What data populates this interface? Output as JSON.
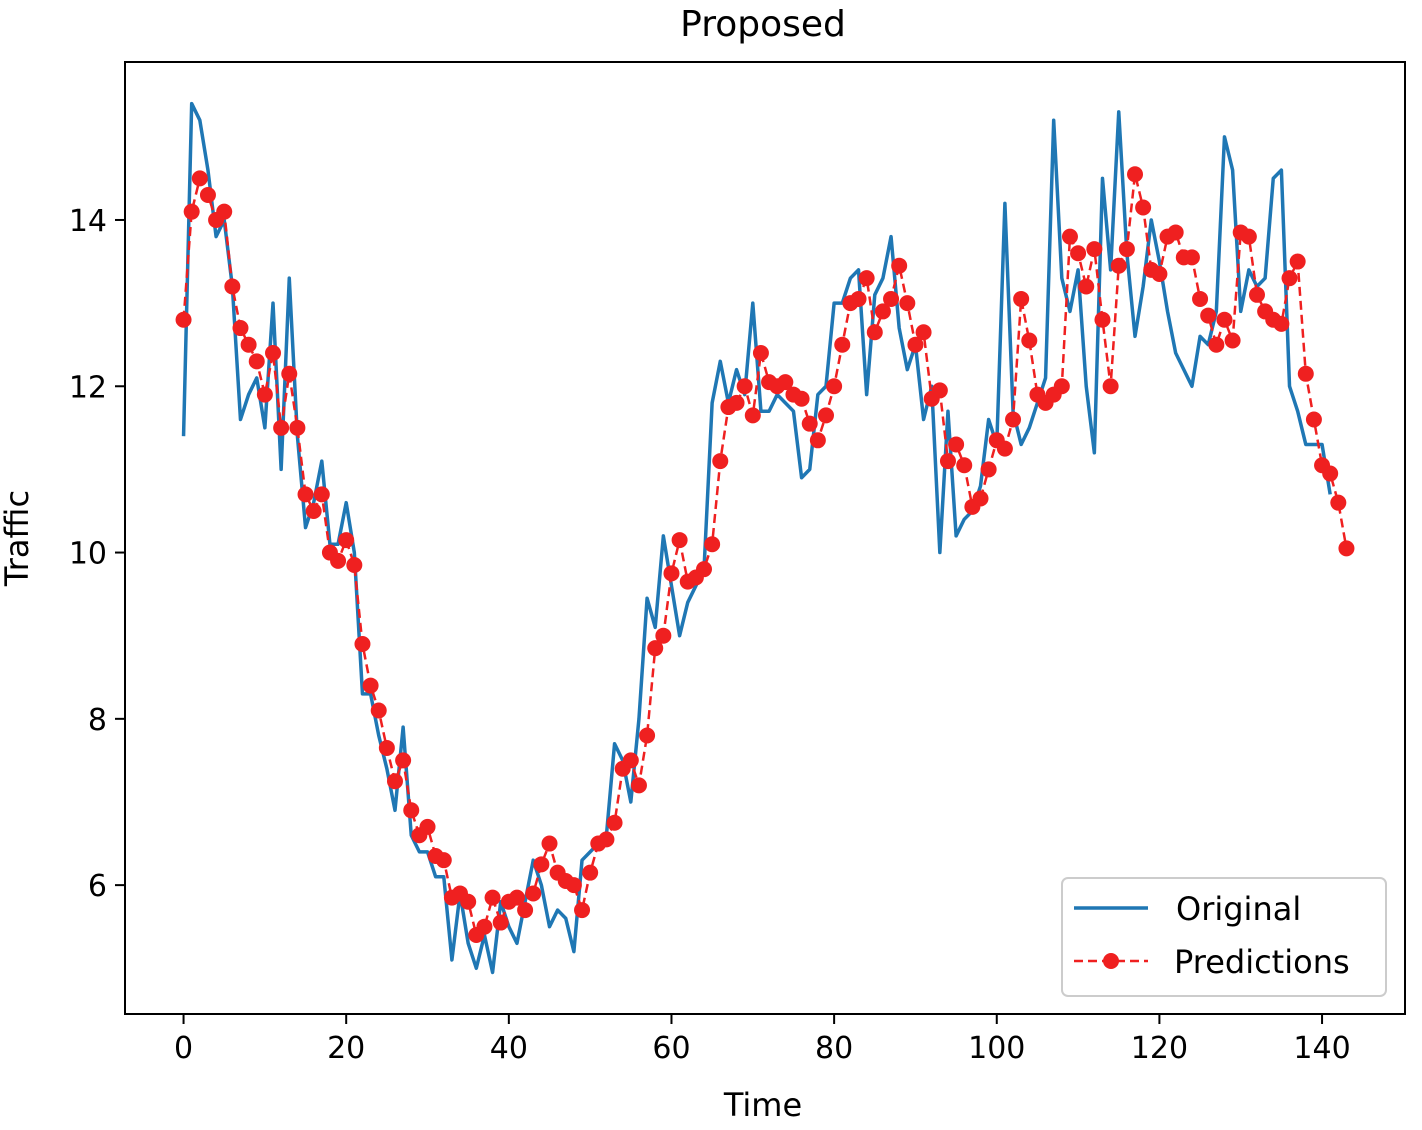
{
  "chart_data": {
    "type": "line",
    "title": "Proposed",
    "xlabel": "Time",
    "ylabel": "Traffic",
    "xlim": [
      -7.2,
      150.2
    ],
    "ylim": [
      4.45,
      15.9
    ],
    "xticks": [
      0,
      20,
      40,
      60,
      80,
      100,
      120,
      140
    ],
    "yticks": [
      6,
      8,
      10,
      12,
      14
    ],
    "grid": false,
    "legend_position": "lower-right",
    "series": [
      {
        "name": "Original",
        "color": "#1f77b4",
        "style": "solid",
        "values": [
          11.4,
          15.4,
          15.2,
          14.6,
          13.8,
          14.0,
          13.2,
          11.6,
          11.9,
          12.1,
          11.5,
          13.0,
          11.0,
          13.3,
          11.4,
          10.3,
          10.6,
          11.1,
          10.1,
          10.1,
          10.6,
          10.0,
          8.3,
          8.3,
          7.8,
          7.4,
          6.9,
          7.9,
          6.6,
          6.4,
          6.4,
          6.1,
          6.1,
          5.1,
          5.9,
          5.3,
          5.0,
          5.4,
          4.95,
          5.8,
          5.5,
          5.3,
          5.8,
          6.3,
          6.0,
          5.5,
          5.7,
          5.6,
          5.2,
          6.3,
          6.4,
          6.5,
          6.6,
          7.7,
          7.5,
          7.0,
          8.0,
          9.45,
          9.1,
          10.2,
          9.6,
          9.0,
          9.4,
          9.6,
          9.8,
          11.8,
          12.3,
          11.8,
          12.2,
          11.9,
          13.0,
          11.7,
          11.7,
          11.9,
          11.8,
          11.7,
          10.9,
          11.0,
          11.9,
          12.0,
          13.0,
          13.0,
          13.3,
          13.4,
          11.9,
          13.1,
          13.3,
          13.8,
          12.7,
          12.2,
          12.5,
          11.6,
          12.0,
          10.0,
          11.7,
          10.2,
          10.4,
          10.5,
          10.8,
          11.6,
          11.3,
          14.2,
          11.7,
          11.3,
          11.5,
          11.8,
          12.1,
          15.2,
          13.3,
          12.9,
          13.4,
          12.0,
          11.2,
          14.5,
          13.4,
          15.3,
          13.6,
          12.6,
          13.2,
          14.0,
          13.5,
          12.9,
          12.4,
          12.2,
          12.0,
          12.6,
          12.5,
          12.9,
          15.0,
          14.6,
          12.9,
          13.4,
          13.2,
          13.3,
          14.5,
          14.6,
          12.0,
          11.7,
          11.3,
          11.3,
          11.3,
          10.7
        ]
      },
      {
        "name": "Predictions",
        "color": "#ef2020",
        "style": "dashed",
        "marker": "circle",
        "values": [
          12.8,
          14.1,
          14.5,
          14.3,
          14.0,
          14.1,
          13.2,
          12.7,
          12.5,
          12.3,
          11.9,
          12.4,
          11.5,
          12.15,
          11.5,
          10.7,
          10.5,
          10.7,
          10.0,
          9.9,
          10.15,
          9.85,
          8.9,
          8.4,
          8.1,
          7.65,
          7.25,
          7.5,
          6.9,
          6.6,
          6.7,
          6.35,
          6.3,
          5.85,
          5.9,
          5.8,
          5.4,
          5.5,
          5.85,
          5.55,
          5.8,
          5.85,
          5.7,
          5.9,
          6.25,
          6.5,
          6.15,
          6.05,
          6.0,
          5.7,
          6.15,
          6.5,
          6.55,
          6.75,
          7.4,
          7.5,
          7.2,
          7.8,
          8.85,
          9.0,
          9.75,
          10.15,
          9.65,
          9.7,
          9.8,
          10.1,
          11.1,
          11.75,
          11.8,
          12.0,
          11.65,
          12.4,
          12.05,
          12.0,
          12.05,
          11.9,
          11.85,
          11.55,
          11.35,
          11.65,
          12.0,
          12.5,
          13.0,
          13.05,
          13.3,
          12.65,
          12.9,
          13.05,
          13.45,
          13.0,
          12.5,
          12.65,
          11.85,
          11.95,
          11.1,
          11.3,
          11.05,
          10.55,
          10.65,
          11.0,
          11.35,
          11.25,
          11.6,
          13.05,
          12.55,
          11.9,
          11.8,
          11.9,
          12.0,
          13.8,
          13.6,
          13.2,
          13.65,
          12.8,
          12.0,
          13.45,
          13.65,
          14.55,
          14.15,
          13.4,
          13.35,
          13.8,
          13.85,
          13.55,
          13.55,
          13.05,
          12.85,
          12.5,
          12.8,
          12.55,
          13.85,
          13.8,
          13.1,
          12.9,
          12.8,
          12.75,
          13.3,
          13.5,
          12.15,
          11.6,
          11.05,
          10.95,
          10.6,
          10.05
        ]
      }
    ]
  }
}
